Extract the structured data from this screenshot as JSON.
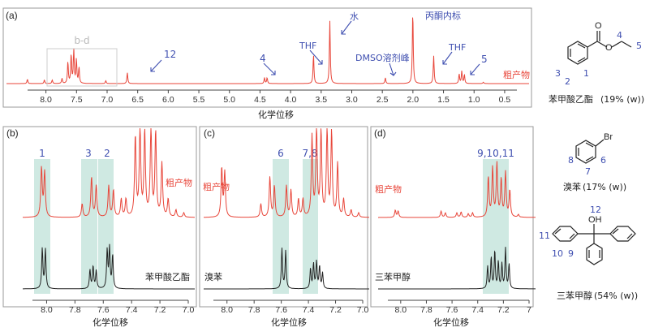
{
  "chart_data": [
    {
      "type": "line",
      "panel_label": "(a)",
      "xlabel": "化学位移",
      "x_ticks": [
        "8.0",
        "7.5",
        "7.0",
        "6.5",
        "6.0",
        "5.5",
        "5.0",
        "4.5",
        "4.0",
        "3.5",
        "3.0",
        "2.5",
        "2.0",
        "1.5",
        "1.0",
        "0.5"
      ],
      "xlim": [
        8.3,
        0.3
      ],
      "grid": false,
      "series": [
        {
          "name": "粗产物",
          "color": "#e8463a",
          "peaks": [
            {
              "x": 7.98,
              "h": 0.06
            },
            {
              "x": 7.72,
              "h": 0.05
            },
            {
              "x": 7.6,
              "h": 0.05
            },
            {
              "x": 7.45,
              "h": 0.07
            },
            {
              "x": 7.36,
              "h": 0.3
            },
            {
              "x": 7.31,
              "h": 0.4
            },
            {
              "x": 7.27,
              "h": 0.46
            },
            {
              "x": 7.23,
              "h": 0.33
            },
            {
              "x": 7.19,
              "h": 0.22
            },
            {
              "x": 6.78,
              "h": 0.04
            },
            {
              "x": 6.45,
              "h": 0.15
            },
            {
              "x": 4.35,
              "h": 0.08
            },
            {
              "x": 4.31,
              "h": 0.08
            },
            {
              "x": 3.6,
              "h": 0.4
            },
            {
              "x": 3.35,
              "h": 0.86
            },
            {
              "x": 2.5,
              "h": 0.08
            },
            {
              "x": 2.08,
              "h": 1.0
            },
            {
              "x": 1.76,
              "h": 0.38
            },
            {
              "x": 1.37,
              "h": 0.13
            },
            {
              "x": 1.33,
              "h": 0.17
            },
            {
              "x": 1.29,
              "h": 0.12
            },
            {
              "x": 1.0,
              "h": 0.02
            }
          ]
        }
      ],
      "annotations": [
        {
          "text": "b-d",
          "color": "#bbbbbb"
        },
        {
          "text": "12",
          "color": "#3f4fb0"
        },
        {
          "text": "4",
          "color": "#3f4fb0"
        },
        {
          "text": "THF",
          "color": "#3f4fb0"
        },
        {
          "text": "水",
          "color": "#3f4fb0"
        },
        {
          "text": "DMSO溶剂峰",
          "color": "#3f4fb0"
        },
        {
          "text": "丙酮内标",
          "color": "#3f4fb0"
        },
        {
          "text": "THF",
          "color": "#3f4fb0"
        },
        {
          "text": "5",
          "color": "#3f4fb0"
        }
      ]
    },
    {
      "type": "line",
      "panel_label": "(b)",
      "xlabel": "化学位移",
      "x_ticks": [
        "8.0",
        "7.8",
        "7.6",
        "7.4",
        "7.2",
        "7.0"
      ],
      "xlim": [
        8.1,
        7.0
      ],
      "highlight_labels": [
        "1",
        "3",
        "2"
      ],
      "series": [
        {
          "name": "粗产物",
          "color": "#e8463a",
          "peaks": [
            {
              "x": 7.98,
              "h": 0.55
            },
            {
              "x": 7.96,
              "h": 0.5
            },
            {
              "x": 7.72,
              "h": 0.15
            },
            {
              "x": 7.66,
              "h": 0.45
            },
            {
              "x": 7.63,
              "h": 0.35
            },
            {
              "x": 7.55,
              "h": 0.35
            },
            {
              "x": 7.52,
              "h": 0.3
            },
            {
              "x": 7.47,
              "h": 0.2
            },
            {
              "x": 7.44,
              "h": 0.2
            },
            {
              "x": 7.38,
              "h": 0.9
            },
            {
              "x": 7.35,
              "h": 1.0
            },
            {
              "x": 7.32,
              "h": 0.95
            },
            {
              "x": 7.28,
              "h": 1.0
            },
            {
              "x": 7.25,
              "h": 0.95
            },
            {
              "x": 7.21,
              "h": 0.6
            },
            {
              "x": 7.17,
              "h": 0.2
            },
            {
              "x": 7.12,
              "h": 0.08
            },
            {
              "x": 7.07,
              "h": 0.05
            }
          ]
        },
        {
          "name": "苯甲酸乙酯",
          "color": "#222222",
          "peaks": [
            {
              "x": 7.975,
              "h": 0.9
            },
            {
              "x": 7.955,
              "h": 0.88
            },
            {
              "x": 7.67,
              "h": 0.42
            },
            {
              "x": 7.65,
              "h": 0.5
            },
            {
              "x": 7.63,
              "h": 0.4
            },
            {
              "x": 7.56,
              "h": 0.85
            },
            {
              "x": 7.545,
              "h": 0.9
            },
            {
              "x": 7.525,
              "h": 0.75
            }
          ]
        }
      ]
    },
    {
      "type": "line",
      "panel_label": "(c)",
      "xlabel": "化学位移",
      "x_ticks": [
        "8.0",
        "7.8",
        "7.6",
        "7.4",
        "7.2",
        "7.0"
      ],
      "xlim": [
        8.1,
        7.0
      ],
      "highlight_labels": [
        "6",
        "7,8"
      ],
      "series": [
        {
          "name": "粗产物",
          "color": "#e8463a",
          "peaks": [
            {
              "x": 7.98,
              "h": 0.55
            },
            {
              "x": 7.96,
              "h": 0.5
            },
            {
              "x": 7.72,
              "h": 0.15
            },
            {
              "x": 7.66,
              "h": 0.45
            },
            {
              "x": 7.63,
              "h": 0.35
            },
            {
              "x": 7.55,
              "h": 0.35
            },
            {
              "x": 7.52,
              "h": 0.3
            },
            {
              "x": 7.47,
              "h": 0.2
            },
            {
              "x": 7.44,
              "h": 0.2
            },
            {
              "x": 7.38,
              "h": 0.9
            },
            {
              "x": 7.35,
              "h": 1.0
            },
            {
              "x": 7.32,
              "h": 0.95
            },
            {
              "x": 7.28,
              "h": 1.0
            },
            {
              "x": 7.25,
              "h": 0.95
            },
            {
              "x": 7.21,
              "h": 0.6
            },
            {
              "x": 7.17,
              "h": 0.2
            },
            {
              "x": 7.12,
              "h": 0.08
            },
            {
              "x": 7.07,
              "h": 0.05
            }
          ]
        },
        {
          "name": "溴苯",
          "color": "#222222",
          "peaks": [
            {
              "x": 7.58,
              "h": 0.9
            },
            {
              "x": 7.555,
              "h": 0.85
            },
            {
              "x": 7.39,
              "h": 0.45
            },
            {
              "x": 7.37,
              "h": 0.55
            },
            {
              "x": 7.35,
              "h": 0.6
            },
            {
              "x": 7.33,
              "h": 0.5
            },
            {
              "x": 7.31,
              "h": 0.35
            }
          ]
        }
      ]
    },
    {
      "type": "line",
      "panel_label": "(d)",
      "xlabel": "化学位移",
      "x_ticks": [
        "8.0",
        "7.8",
        "7.6",
        "7.4",
        "7.2",
        "7"
      ],
      "xlim": [
        8.1,
        7.0
      ],
      "highlight_labels": [
        "9,10,11"
      ],
      "series": [
        {
          "name": "粗产物",
          "color": "#e8463a",
          "peaks": [
            {
              "x": 7.98,
              "h": 0.08
            },
            {
              "x": 7.96,
              "h": 0.07
            },
            {
              "x": 7.66,
              "h": 0.07
            },
            {
              "x": 7.63,
              "h": 0.05
            },
            {
              "x": 7.55,
              "h": 0.05
            },
            {
              "x": 7.52,
              "h": 0.06
            },
            {
              "x": 7.47,
              "h": 0.04
            },
            {
              "x": 7.44,
              "h": 0.05
            },
            {
              "x": 7.33,
              "h": 0.45
            },
            {
              "x": 7.3,
              "h": 0.55
            },
            {
              "x": 7.27,
              "h": 0.6
            },
            {
              "x": 7.24,
              "h": 0.42
            },
            {
              "x": 7.21,
              "h": 0.5
            },
            {
              "x": 7.18,
              "h": 0.3
            },
            {
              "x": 7.12,
              "h": 0.03
            }
          ]
        },
        {
          "name": "三苯甲醇",
          "color": "#222222",
          "peaks": [
            {
              "x": 7.335,
              "h": 0.5
            },
            {
              "x": 7.31,
              "h": 0.7
            },
            {
              "x": 7.285,
              "h": 0.85
            },
            {
              "x": 7.26,
              "h": 0.6
            },
            {
              "x": 7.235,
              "h": 0.55
            },
            {
              "x": 7.21,
              "h": 0.9
            },
            {
              "x": 7.185,
              "h": 0.55
            }
          ]
        }
      ]
    }
  ],
  "structures": [
    {
      "name": "苯甲酸乙酯",
      "yield": "(19% (w))",
      "numbers": [
        "1",
        "2",
        "3",
        "4",
        "5"
      ]
    },
    {
      "name": "溴苯",
      "yield": "(17% (w))",
      "numbers": [
        "6",
        "7",
        "8"
      ],
      "atoms": [
        "Br"
      ]
    },
    {
      "name": "三苯甲醇",
      "yield": "(54% (w))",
      "numbers": [
        "9",
        "10",
        "11",
        "12"
      ],
      "atoms": [
        "OH"
      ]
    }
  ],
  "colors": {
    "red": "#e8463a",
    "blue": "#3f4fb0",
    "black": "#222222",
    "highlight": "#cfe9e2",
    "frame": "#999999"
  }
}
